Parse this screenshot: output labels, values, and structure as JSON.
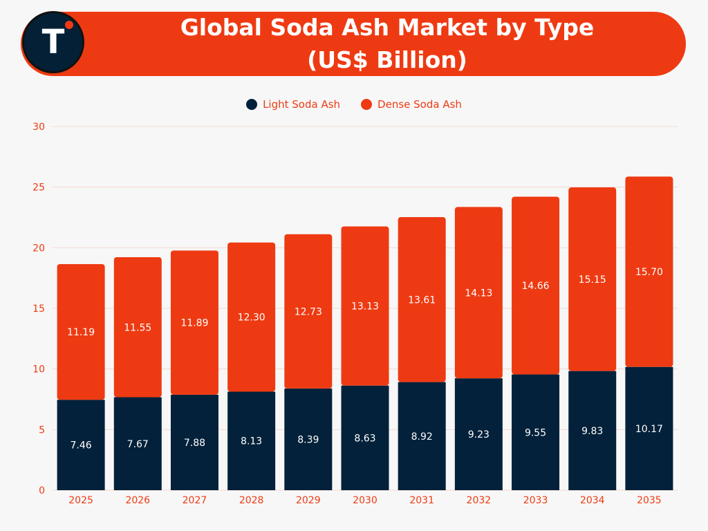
{
  "brand": {
    "logo_letter": "T"
  },
  "colors": {
    "light": "#03213a",
    "dense": "#ee3a12",
    "axis_text": "#ee3a12",
    "banner": "#ee3a12"
  },
  "chart_data": {
    "type": "bar",
    "stacked": true,
    "title": "Global Soda Ash Market by Type",
    "subtitle": "(US$ Billion)",
    "xlabel": "",
    "ylabel": "",
    "categories": [
      "2025",
      "2026",
      "2027",
      "2028",
      "2029",
      "2030",
      "2031",
      "2032",
      "2033",
      "2034",
      "2035"
    ],
    "series": [
      {
        "name": "Light Soda Ash",
        "values": [
          7.46,
          7.67,
          7.88,
          8.13,
          8.39,
          8.63,
          8.92,
          9.23,
          9.55,
          9.83,
          10.17
        ],
        "labels": [
          "7.46",
          "7.67",
          "7.88",
          "8.13",
          "8.39",
          "8.63",
          "8.92",
          "9.23",
          "9.55",
          "9.83",
          "10.17"
        ]
      },
      {
        "name": "Dense Soda Ash",
        "values": [
          11.19,
          11.55,
          11.89,
          12.3,
          12.73,
          13.13,
          13.61,
          14.13,
          14.66,
          15.15,
          15.7
        ],
        "labels": [
          "11.19",
          "11.55",
          "11.89",
          "12.30",
          "12.73",
          "13.13",
          "13.61",
          "14.13",
          "14.66",
          "15.15",
          "15.70"
        ]
      }
    ],
    "ylim": [
      0,
      30
    ],
    "yticks": [
      "0",
      "5",
      "10",
      "15",
      "20",
      "25",
      "30"
    ],
    "grid": true,
    "legend_position": "top-center"
  }
}
